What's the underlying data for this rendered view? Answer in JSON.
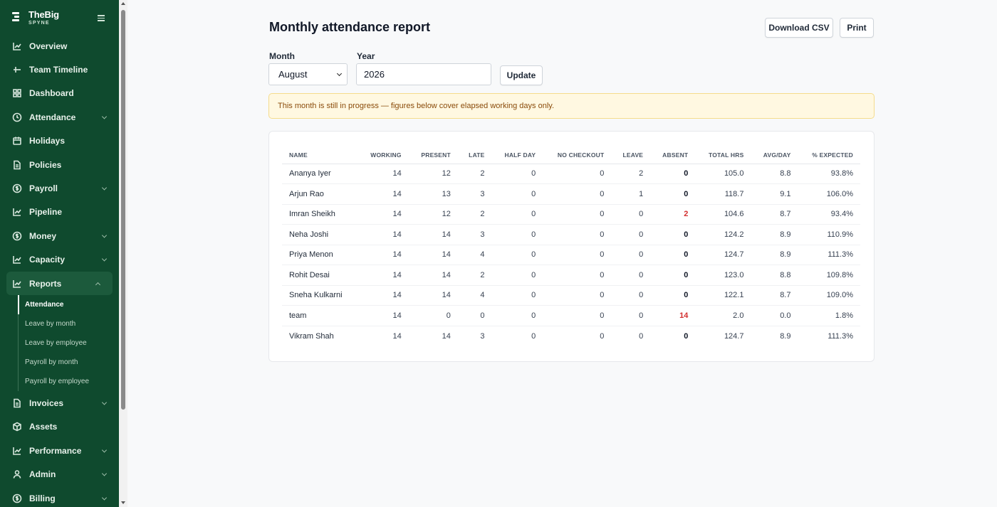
{
  "brand": {
    "name": "TheBig",
    "sub": "SPYNE"
  },
  "sidebar": {
    "items_top": [
      {
        "label": "Overview",
        "icon": "chart-line-icon",
        "chevron": false
      },
      {
        "label": "Team Timeline",
        "icon": "timeline-icon",
        "chevron": false
      },
      {
        "label": "Dashboard",
        "icon": "grid-icon",
        "chevron": false
      },
      {
        "label": "Attendance",
        "icon": "clock-icon",
        "chevron": true
      },
      {
        "label": "Holidays",
        "icon": "calendar-icon",
        "chevron": false
      },
      {
        "label": "Policies",
        "icon": "document-icon",
        "chevron": false
      },
      {
        "label": "Payroll",
        "icon": "dollar-circle-icon",
        "chevron": true
      },
      {
        "label": "Pipeline",
        "icon": "chart-line-icon",
        "chevron": false
      },
      {
        "label": "Money",
        "icon": "dollar-circle-icon",
        "chevron": true
      },
      {
        "label": "Capacity",
        "icon": "chart-line-icon",
        "chevron": true
      },
      {
        "label": "Reports",
        "icon": "chart-line-icon",
        "chevron": true
      }
    ],
    "reports_sub": [
      {
        "label": "Attendance",
        "active": true
      },
      {
        "label": "Leave by month",
        "active": false
      },
      {
        "label": "Leave by employee",
        "active": false
      },
      {
        "label": "Payroll by month",
        "active": false
      },
      {
        "label": "Payroll by employee",
        "active": false
      }
    ],
    "items_bottom": [
      {
        "label": "Invoices",
        "icon": "document-icon",
        "chevron": true
      },
      {
        "label": "Assets",
        "icon": "box-icon",
        "chevron": false
      },
      {
        "label": "Performance",
        "icon": "chart-line-icon",
        "chevron": true
      },
      {
        "label": "Admin",
        "icon": "user-icon",
        "chevron": true
      },
      {
        "label": "Billing",
        "icon": "dollar-circle-icon",
        "chevron": true
      }
    ]
  },
  "page": {
    "title": "Monthly attendance report",
    "download_label": "Download CSV",
    "print_label": "Print",
    "month_label": "Month",
    "month_value": "August",
    "year_label": "Year",
    "year_value": "2026",
    "update_label": "Update",
    "alert": "This month is still in progress — figures below cover elapsed working days only."
  },
  "table": {
    "headers": [
      "NAME",
      "WORKING",
      "PRESENT",
      "LATE",
      "HALF DAY",
      "NO CHECKOUT",
      "LEAVE",
      "ABSENT",
      "TOTAL HRS",
      "AVG/DAY",
      "% EXPECTED"
    ],
    "rows": [
      [
        "Ananya Iyer",
        "14",
        "12",
        "2",
        "0",
        "0",
        "2",
        "0",
        "105.0",
        "8.8",
        "93.8%"
      ],
      [
        "Arjun Rao",
        "14",
        "13",
        "3",
        "0",
        "0",
        "1",
        "0",
        "118.7",
        "9.1",
        "106.0%"
      ],
      [
        "Imran Sheikh",
        "14",
        "12",
        "2",
        "0",
        "0",
        "0",
        "2",
        "104.6",
        "8.7",
        "93.4%"
      ],
      [
        "Neha Joshi",
        "14",
        "14",
        "3",
        "0",
        "0",
        "0",
        "0",
        "124.2",
        "8.9",
        "110.9%"
      ],
      [
        "Priya Menon",
        "14",
        "14",
        "4",
        "0",
        "0",
        "0",
        "0",
        "124.7",
        "8.9",
        "111.3%"
      ],
      [
        "Rohit Desai",
        "14",
        "14",
        "2",
        "0",
        "0",
        "0",
        "0",
        "123.0",
        "8.8",
        "109.8%"
      ],
      [
        "Sneha Kulkarni",
        "14",
        "14",
        "4",
        "0",
        "0",
        "0",
        "0",
        "122.1",
        "8.7",
        "109.0%"
      ],
      [
        "team",
        "14",
        "0",
        "0",
        "0",
        "0",
        "0",
        "14",
        "2.0",
        "0.0",
        "1.8%"
      ],
      [
        "Vikram Shah",
        "14",
        "14",
        "3",
        "0",
        "0",
        "0",
        "0",
        "124.7",
        "8.9",
        "111.3%"
      ]
    ]
  },
  "colors": {
    "sidebar": "#0f4a2e",
    "absent_alert": "#d32f2f",
    "alert_bg": "#fff8e1"
  }
}
